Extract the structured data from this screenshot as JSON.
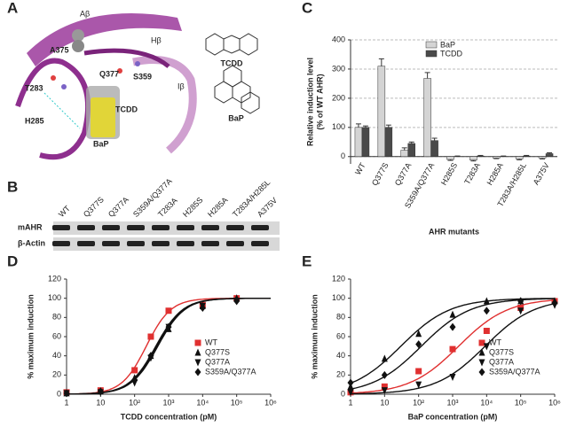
{
  "panel_labels": [
    "A",
    "B",
    "C",
    "D",
    "E"
  ],
  "structure": {
    "labels": [
      "Aβ",
      "Hβ",
      "Iβ",
      "A375",
      "Q377",
      "S359",
      "T283",
      "H285",
      "TCDD",
      "BaP"
    ],
    "molecules": [
      "TCDD",
      "BaP"
    ]
  },
  "blot": {
    "lanes": [
      "WT",
      "Q377S",
      "Q377A",
      "S359A/Q377A",
      "T283A",
      "H285S",
      "H285A",
      "T283A/H285L",
      "A375V"
    ],
    "rows": [
      "mAHR",
      "β-Actin"
    ]
  },
  "chart_data": [
    {
      "type": "bar",
      "ylabel": [
        "Relative induction level",
        "(% of WT AHR)"
      ],
      "xlabel": "AHR mutants",
      "categories": [
        "WT",
        "Q377S",
        "Q377A",
        "S359A/Q377A",
        "H285S",
        "T283A",
        "H285A",
        "T283A/H285L",
        "A375V"
      ],
      "series": [
        {
          "name": "BaP",
          "color": "#d4d4d4",
          "values": [
            100,
            310,
            22,
            268,
            -10,
            -12,
            -5,
            -8,
            -5
          ],
          "errors": [
            12,
            25,
            8,
            20,
            3,
            3,
            2,
            3,
            3
          ]
        },
        {
          "name": "TCDD",
          "color": "#4a4a4a",
          "values": [
            100,
            100,
            45,
            55,
            0,
            2,
            0,
            2,
            10
          ],
          "errors": [
            5,
            8,
            5,
            8,
            2,
            2,
            2,
            2,
            3
          ]
        }
      ],
      "ylim": [
        -25,
        400
      ],
      "yticks": [
        0,
        100,
        200,
        300,
        400
      ],
      "grid": true,
      "legend": "top"
    },
    {
      "type": "dose",
      "xlabel": "TCDD concentration (pM)",
      "ylabel": "% maximum induction",
      "log_x": true,
      "x": [
        1,
        10,
        100,
        300,
        1000,
        10000,
        100000
      ],
      "series": [
        {
          "name": "WT",
          "color": "#e03030",
          "marker": "square",
          "values": [
            2,
            4,
            25,
            60,
            87,
            93,
            100
          ],
          "fit": {
            "ec50": 220,
            "hill": 1.2,
            "bottom": 0,
            "top": 100
          }
        },
        {
          "name": "Q377S",
          "color": "#111111",
          "marker": "triangle",
          "values": [
            1,
            3,
            17,
            40,
            68,
            92,
            100
          ],
          "fit": {
            "ec50": 420,
            "hill": 1.1,
            "bottom": 0,
            "top": 100
          }
        },
        {
          "name": "Q377A",
          "color": "#111111",
          "marker": "triangle-down",
          "values": [
            1,
            2,
            12,
            38,
            70,
            92,
            97
          ],
          "fit": {
            "ec50": 480,
            "hill": 1.1,
            "bottom": 0,
            "top": 100
          }
        },
        {
          "name": "S359A/Q377A",
          "color": "#111111",
          "marker": "diamond",
          "values": [
            1,
            3,
            15,
            40,
            70,
            90,
            97
          ],
          "fit": {
            "ec50": 450,
            "hill": 1.1,
            "bottom": 0,
            "top": 100
          }
        }
      ],
      "xlim": [
        1,
        1000000
      ],
      "xticks": [
        1,
        10,
        {
          "value": 100,
          "label": "10²"
        },
        {
          "value": 1000,
          "label": "10³"
        },
        {
          "value": 10000,
          "label": "10⁴"
        },
        {
          "value": 100000,
          "label": "10⁵"
        },
        {
          "value": 1000000,
          "label": "10⁶"
        }
      ],
      "ylim": [
        0,
        120
      ],
      "yticks": [
        0,
        20,
        40,
        60,
        80,
        100,
        120
      ],
      "legend": "right"
    },
    {
      "type": "dose",
      "xlabel": "BaP concentration (pM)",
      "ylabel": "% maximum induction",
      "log_x": true,
      "x": [
        1,
        10,
        100,
        1000,
        10000,
        100000,
        1000000
      ],
      "series": [
        {
          "name": "WT",
          "color": "#e03030",
          "marker": "square",
          "values": [
            2,
            8,
            24,
            47,
            66,
            90,
            97
          ],
          "fit": {
            "ec50": 1500,
            "hill": 0.6,
            "bottom": 0,
            "top": 100
          }
        },
        {
          "name": "Q377S",
          "color": "#111111",
          "marker": "triangle",
          "values": [
            8,
            37,
            63,
            83,
            97,
            97,
            97
          ],
          "fit": {
            "ec50": 30,
            "hill": 0.6,
            "bottom": 0,
            "top": 100
          }
        },
        {
          "name": "Q377A",
          "color": "#111111",
          "marker": "triangle-down",
          "values": [
            2,
            4,
            10,
            18,
            50,
            87,
            93
          ],
          "fit": {
            "ec50": 9000,
            "hill": 0.6,
            "bottom": 0,
            "top": 100
          }
        },
        {
          "name": "S359A/Q377A",
          "color": "#111111",
          "marker": "diamond",
          "values": [
            12,
            20,
            52,
            70,
            87,
            97,
            95
          ],
          "fit": {
            "ec50": 120,
            "hill": 0.6,
            "bottom": 0,
            "top": 100
          }
        }
      ],
      "xlim": [
        1,
        1000000
      ],
      "xticks": [
        1,
        10,
        {
          "value": 100,
          "label": "10²"
        },
        {
          "value": 1000,
          "label": "10³"
        },
        {
          "value": 10000,
          "label": "10⁴"
        },
        {
          "value": 100000,
          "label": "10⁵"
        },
        {
          "value": 1000000,
          "label": "10⁶"
        }
      ],
      "ylim": [
        0,
        120
      ],
      "yticks": [
        0,
        20,
        40,
        60,
        80,
        100,
        120
      ],
      "legend": "right"
    }
  ]
}
